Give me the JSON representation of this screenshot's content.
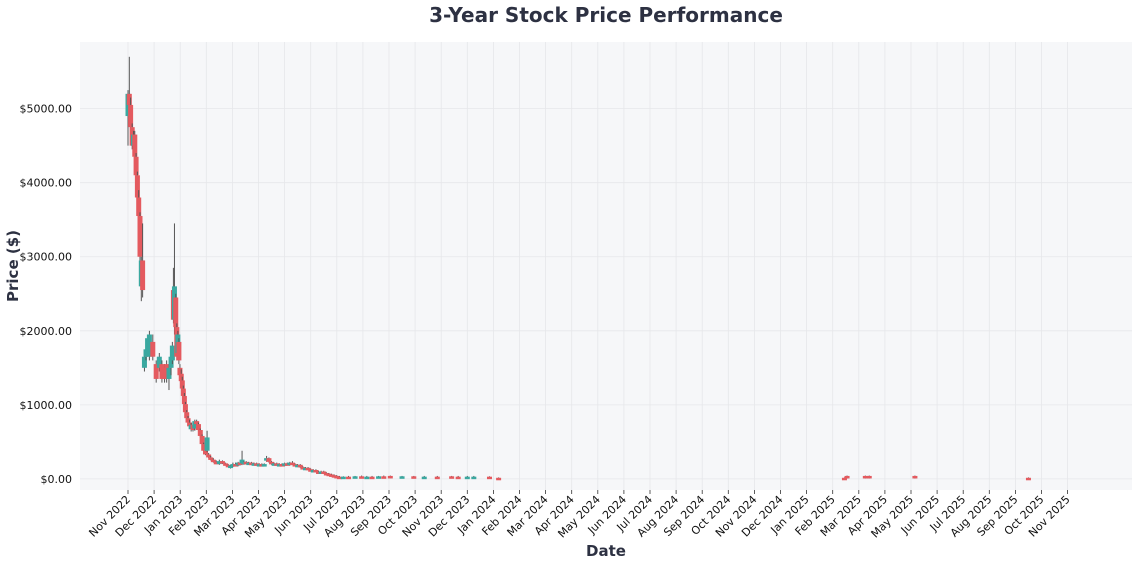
{
  "chart_data": {
    "type": "candlestick",
    "title": "3-Year Stock Price Performance",
    "xlabel": "Date",
    "ylabel": "Price ($)",
    "ylim": [
      -150,
      5900
    ],
    "grid": true,
    "colors": {
      "up": "#3aa8a0",
      "down": "#e45a5f",
      "wick": "#555555",
      "plot_bg": "#f6f7f9"
    },
    "x_ticks": [
      "Nov 2022",
      "Dec 2022",
      "Jan 2023",
      "Feb 2023",
      "Mar 2023",
      "Apr 2023",
      "May 2023",
      "Jun 2023",
      "Jul 2023",
      "Aug 2023",
      "Sep 2023",
      "Oct 2023",
      "Nov 2023",
      "Dec 2023",
      "Jan 2024",
      "Feb 2024",
      "Mar 2024",
      "Apr 2024",
      "May 2024",
      "Jun 2024",
      "Jul 2024",
      "Aug 2024",
      "Sep 2024",
      "Oct 2024",
      "Nov 2024",
      "Dec 2024",
      "Jan 2025",
      "Feb 2025",
      "Mar 2025",
      "Apr 2025",
      "May 2025",
      "Jun 2025",
      "Jul 2025",
      "Aug 2025",
      "Sep 2025",
      "Oct 2025",
      "Nov 2025"
    ],
    "y_ticks": [
      {
        "value": 0,
        "label": "$0.00"
      },
      {
        "value": 1000,
        "label": "$1000.00"
      },
      {
        "value": 2000,
        "label": "$2000.00"
      },
      {
        "value": 3000,
        "label": "$3000.00"
      },
      {
        "value": 4000,
        "label": "$4000.00"
      },
      {
        "value": 5000,
        "label": "$5000.00"
      }
    ],
    "candles": [
      {
        "m": 0.0,
        "o": 4900,
        "h": 5250,
        "l": 4500,
        "c": 5200
      },
      {
        "m": 0.05,
        "o": 5200,
        "h": 5700,
        "l": 4900,
        "c": 5050
      },
      {
        "m": 0.1,
        "o": 5050,
        "h": 5150,
        "l": 4700,
        "c": 4750
      },
      {
        "m": 0.16,
        "o": 4750,
        "h": 4800,
        "l": 4450,
        "c": 4500
      },
      {
        "m": 0.21,
        "o": 4500,
        "h": 4700,
        "l": 4400,
        "c": 4650
      },
      {
        "m": 0.26,
        "o": 4650,
        "h": 4700,
        "l": 4250,
        "c": 4350
      },
      {
        "m": 0.31,
        "o": 4350,
        "h": 4400,
        "l": 4000,
        "c": 4100
      },
      {
        "m": 0.36,
        "o": 4100,
        "h": 4150,
        "l": 3700,
        "c": 3800
      },
      {
        "m": 0.41,
        "o": 3800,
        "h": 3900,
        "l": 3450,
        "c": 3550
      },
      {
        "m": 0.46,
        "o": 3550,
        "h": 3600,
        "l": 2950,
        "c": 3000
      },
      {
        "m": 0.51,
        "o": 2600,
        "h": 3000,
        "l": 2400,
        "c": 2950
      },
      {
        "m": 0.56,
        "o": 2950,
        "h": 3450,
        "l": 2450,
        "c": 2550
      },
      {
        "m": 0.63,
        "o": 1500,
        "h": 1700,
        "l": 1450,
        "c": 1650
      },
      {
        "m": 0.69,
        "o": 1650,
        "h": 1850,
        "l": 1600,
        "c": 1750
      },
      {
        "m": 0.75,
        "o": 1700,
        "h": 1950,
        "l": 1650,
        "c": 1900
      },
      {
        "m": 0.82,
        "o": 1650,
        "h": 2000,
        "l": 1600,
        "c": 1950
      },
      {
        "m": 0.95,
        "o": 1850,
        "h": 1950,
        "l": 1600,
        "c": 1650
      },
      {
        "m": 1.08,
        "o": 1550,
        "h": 1600,
        "l": 1300,
        "c": 1350
      },
      {
        "m": 1.2,
        "o": 1500,
        "h": 1700,
        "l": 1450,
        "c": 1650
      },
      {
        "m": 1.3,
        "o": 1550,
        "h": 1600,
        "l": 1300,
        "c": 1350
      },
      {
        "m": 1.4,
        "o": 1500,
        "h": 1550,
        "l": 1300,
        "c": 1350
      },
      {
        "m": 1.48,
        "o": 1550,
        "h": 1600,
        "l": 1300,
        "c": 1350
      },
      {
        "m": 1.57,
        "o": 1350,
        "h": 1550,
        "l": 1200,
        "c": 1500
      },
      {
        "m": 1.65,
        "o": 1500,
        "h": 1700,
        "l": 1400,
        "c": 1650
      },
      {
        "m": 1.7,
        "o": 1600,
        "h": 1850,
        "l": 1550,
        "c": 1800
      },
      {
        "m": 1.74,
        "o": 2550,
        "h": 2850,
        "l": 2100,
        "c": 2150
      },
      {
        "m": 1.78,
        "o": 2150,
        "h": 3450,
        "l": 1950,
        "c": 2600
      },
      {
        "m": 1.83,
        "o": 2450,
        "h": 2500,
        "l": 2000,
        "c": 2050
      },
      {
        "m": 1.87,
        "o": 2050,
        "h": 2100,
        "l": 1600,
        "c": 1650
      },
      {
        "m": 1.91,
        "o": 1700,
        "h": 2000,
        "l": 1650,
        "c": 1950
      },
      {
        "m": 1.95,
        "o": 1850,
        "h": 1900,
        "l": 1550,
        "c": 1600
      },
      {
        "m": 1.99,
        "o": 1500,
        "h": 1550,
        "l": 1350,
        "c": 1400
      },
      {
        "m": 2.04,
        "o": 1420,
        "h": 1480,
        "l": 1280,
        "c": 1320
      },
      {
        "m": 2.08,
        "o": 1330,
        "h": 1380,
        "l": 1180,
        "c": 1220
      },
      {
        "m": 2.12,
        "o": 1220,
        "h": 1260,
        "l": 1080,
        "c": 1120
      },
      {
        "m": 2.16,
        "o": 1120,
        "h": 1160,
        "l": 980,
        "c": 1010
      },
      {
        "m": 2.2,
        "o": 1010,
        "h": 1040,
        "l": 880,
        "c": 900
      },
      {
        "m": 2.25,
        "o": 900,
        "h": 930,
        "l": 800,
        "c": 820
      },
      {
        "m": 2.3,
        "o": 820,
        "h": 850,
        "l": 740,
        "c": 760
      },
      {
        "m": 2.36,
        "o": 760,
        "h": 800,
        "l": 690,
        "c": 710
      },
      {
        "m": 2.42,
        "o": 670,
        "h": 760,
        "l": 640,
        "c": 730
      },
      {
        "m": 2.49,
        "o": 730,
        "h": 760,
        "l": 640,
        "c": 660
      },
      {
        "m": 2.56,
        "o": 680,
        "h": 800,
        "l": 650,
        "c": 780
      },
      {
        "m": 2.63,
        "o": 780,
        "h": 800,
        "l": 720,
        "c": 740
      },
      {
        "m": 2.7,
        "o": 740,
        "h": 760,
        "l": 640,
        "c": 660
      },
      {
        "m": 2.77,
        "o": 660,
        "h": 680,
        "l": 560,
        "c": 580
      },
      {
        "m": 2.84,
        "o": 580,
        "h": 600,
        "l": 450,
        "c": 470
      },
      {
        "m": 2.9,
        "o": 470,
        "h": 490,
        "l": 370,
        "c": 380
      },
      {
        "m": 2.97,
        "o": 380,
        "h": 400,
        "l": 320,
        "c": 330
      },
      {
        "m": 3.03,
        "o": 380,
        "h": 650,
        "l": 360,
        "c": 560
      },
      {
        "m": 3.09,
        "o": 330,
        "h": 350,
        "l": 280,
        "c": 290
      },
      {
        "m": 3.17,
        "o": 290,
        "h": 310,
        "l": 250,
        "c": 260
      },
      {
        "m": 3.27,
        "o": 260,
        "h": 280,
        "l": 220,
        "c": 230
      },
      {
        "m": 3.38,
        "o": 230,
        "h": 250,
        "l": 200,
        "c": 210
      },
      {
        "m": 3.5,
        "o": 200,
        "h": 260,
        "l": 190,
        "c": 240
      },
      {
        "m": 3.62,
        "o": 240,
        "h": 250,
        "l": 200,
        "c": 210
      },
      {
        "m": 3.74,
        "o": 210,
        "h": 220,
        "l": 180,
        "c": 190
      },
      {
        "m": 3.84,
        "o": 190,
        "h": 200,
        "l": 160,
        "c": 170
      },
      {
        "m": 3.93,
        "o": 160,
        "h": 190,
        "l": 140,
        "c": 180
      },
      {
        "m": 4.02,
        "o": 180,
        "h": 220,
        "l": 160,
        "c": 200
      },
      {
        "m": 4.12,
        "o": 200,
        "h": 220,
        "l": 170,
        "c": 180
      },
      {
        "m": 4.22,
        "o": 180,
        "h": 230,
        "l": 170,
        "c": 220
      },
      {
        "m": 4.3,
        "o": 220,
        "h": 240,
        "l": 200,
        "c": 210
      },
      {
        "m": 4.37,
        "o": 210,
        "h": 380,
        "l": 200,
        "c": 260
      },
      {
        "m": 4.44,
        "o": 200,
        "h": 240,
        "l": 190,
        "c": 230
      },
      {
        "m": 4.53,
        "o": 230,
        "h": 240,
        "l": 200,
        "c": 210
      },
      {
        "m": 4.63,
        "o": 200,
        "h": 230,
        "l": 190,
        "c": 220
      },
      {
        "m": 4.73,
        "o": 220,
        "h": 230,
        "l": 190,
        "c": 200
      },
      {
        "m": 4.83,
        "o": 190,
        "h": 220,
        "l": 180,
        "c": 210
      },
      {
        "m": 4.93,
        "o": 210,
        "h": 220,
        "l": 180,
        "c": 190
      },
      {
        "m": 5.03,
        "o": 190,
        "h": 210,
        "l": 170,
        "c": 200
      },
      {
        "m": 5.13,
        "o": 200,
        "h": 210,
        "l": 170,
        "c": 180
      },
      {
        "m": 5.22,
        "o": 180,
        "h": 210,
        "l": 170,
        "c": 200
      },
      {
        "m": 5.31,
        "o": 250,
        "h": 310,
        "l": 230,
        "c": 280
      },
      {
        "m": 5.4,
        "o": 280,
        "h": 290,
        "l": 220,
        "c": 230
      },
      {
        "m": 5.5,
        "o": 230,
        "h": 240,
        "l": 190,
        "c": 200
      },
      {
        "m": 5.6,
        "o": 200,
        "h": 220,
        "l": 180,
        "c": 210
      },
      {
        "m": 5.7,
        "o": 210,
        "h": 220,
        "l": 180,
        "c": 190
      },
      {
        "m": 5.8,
        "o": 190,
        "h": 210,
        "l": 170,
        "c": 200
      },
      {
        "m": 5.9,
        "o": 200,
        "h": 210,
        "l": 170,
        "c": 180
      },
      {
        "m": 6.0,
        "o": 180,
        "h": 220,
        "l": 170,
        "c": 210
      },
      {
        "m": 6.1,
        "o": 210,
        "h": 220,
        "l": 180,
        "c": 190
      },
      {
        "m": 6.2,
        "o": 190,
        "h": 230,
        "l": 180,
        "c": 220
      },
      {
        "m": 6.3,
        "o": 220,
        "h": 240,
        "l": 190,
        "c": 200
      },
      {
        "m": 6.4,
        "o": 200,
        "h": 210,
        "l": 170,
        "c": 180
      },
      {
        "m": 6.5,
        "o": 180,
        "h": 200,
        "l": 160,
        "c": 190
      },
      {
        "m": 6.6,
        "o": 190,
        "h": 200,
        "l": 150,
        "c": 160
      },
      {
        "m": 6.7,
        "o": 160,
        "h": 170,
        "l": 130,
        "c": 140
      },
      {
        "m": 6.8,
        "o": 140,
        "h": 160,
        "l": 120,
        "c": 150
      },
      {
        "m": 6.9,
        "o": 150,
        "h": 160,
        "l": 120,
        "c": 130
      },
      {
        "m": 7.0,
        "o": 130,
        "h": 140,
        "l": 100,
        "c": 110
      },
      {
        "m": 7.1,
        "o": 110,
        "h": 130,
        "l": 100,
        "c": 120
      },
      {
        "m": 7.2,
        "o": 120,
        "h": 130,
        "l": 90,
        "c": 100
      },
      {
        "m": 7.3,
        "o": 100,
        "h": 110,
        "l": 80,
        "c": 90
      },
      {
        "m": 7.4,
        "o": 90,
        "h": 110,
        "l": 80,
        "c": 100
      },
      {
        "m": 7.5,
        "o": 100,
        "h": 110,
        "l": 70,
        "c": 80
      },
      {
        "m": 7.6,
        "o": 80,
        "h": 90,
        "l": 60,
        "c": 70
      },
      {
        "m": 7.7,
        "o": 70,
        "h": 80,
        "l": 50,
        "c": 60
      },
      {
        "m": 7.8,
        "o": 60,
        "h": 70,
        "l": 40,
        "c": 50
      },
      {
        "m": 7.9,
        "o": 50,
        "h": 60,
        "l": 30,
        "c": 40
      },
      {
        "m": 8.0,
        "o": 40,
        "h": 50,
        "l": 20,
        "c": 30
      },
      {
        "m": 8.1,
        "o": 30,
        "h": 40,
        "l": 15,
        "c": 20
      },
      {
        "m": 8.25,
        "o": 20,
        "h": 35,
        "l": 10,
        "c": 30
      },
      {
        "m": 8.45,
        "o": 30,
        "h": 40,
        "l": 10,
        "c": 15
      },
      {
        "m": 8.7,
        "o": 15,
        "h": 40,
        "l": 10,
        "c": 35
      },
      {
        "m": 8.95,
        "o": 35,
        "h": 45,
        "l": 10,
        "c": 15
      },
      {
        "m": 9.15,
        "o": 15,
        "h": 40,
        "l": 10,
        "c": 30
      },
      {
        "m": 9.35,
        "o": 30,
        "h": 40,
        "l": 10,
        "c": 15
      },
      {
        "m": 9.6,
        "o": 15,
        "h": 40,
        "l": 10,
        "c": 35
      },
      {
        "m": 9.8,
        "o": 35,
        "h": 45,
        "l": 10,
        "c": 15
      },
      {
        "m": 10.05,
        "o": 40,
        "h": 45,
        "l": 10,
        "c": 15
      },
      {
        "m": 10.5,
        "o": 15,
        "h": 40,
        "l": 10,
        "c": 35
      },
      {
        "m": 10.95,
        "o": 35,
        "h": 40,
        "l": 10,
        "c": 15
      },
      {
        "m": 11.35,
        "o": 15,
        "h": 40,
        "l": 10,
        "c": 30
      },
      {
        "m": 11.85,
        "o": 30,
        "h": 40,
        "l": 10,
        "c": 15
      },
      {
        "m": 12.4,
        "o": 35,
        "h": 40,
        "l": 10,
        "c": 15
      },
      {
        "m": 12.65,
        "o": 30,
        "h": 40,
        "l": 10,
        "c": 15
      },
      {
        "m": 13.0,
        "o": 15,
        "h": 40,
        "l": 10,
        "c": 30
      },
      {
        "m": 13.25,
        "o": 15,
        "h": 40,
        "l": 10,
        "c": 30
      },
      {
        "m": 13.85,
        "o": 30,
        "h": 35,
        "l": 10,
        "c": 15
      },
      {
        "m": 14.2,
        "o": 15,
        "h": 20,
        "l": 5,
        "c": 10
      },
      {
        "m": 27.45,
        "o": 15,
        "h": 20,
        "l": 5,
        "c": 10
      },
      {
        "m": 27.55,
        "o": 40,
        "h": 45,
        "l": 5,
        "c": 10
      },
      {
        "m": 28.25,
        "o": 40,
        "h": 45,
        "l": 5,
        "c": 10
      },
      {
        "m": 28.4,
        "o": 40,
        "h": 45,
        "l": 5,
        "c": 10
      },
      {
        "m": 30.15,
        "o": 40,
        "h": 45,
        "l": 5,
        "c": 10
      },
      {
        "m": 34.5,
        "o": 15,
        "h": 20,
        "l": 5,
        "c": 10
      }
    ]
  }
}
